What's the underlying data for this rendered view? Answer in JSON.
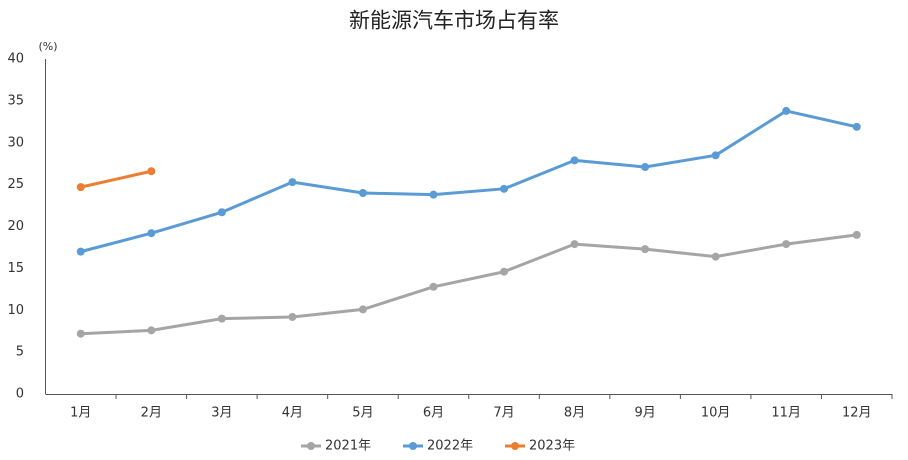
{
  "chart_data": {
    "type": "line",
    "title": "新能源汽车市场占有率",
    "y_label": "(%)",
    "categories": [
      "1月",
      "2月",
      "3月",
      "4月",
      "5月",
      "6月",
      "7月",
      "8月",
      "9月",
      "10月",
      "11月",
      "12月"
    ],
    "series": [
      {
        "name": "2021年",
        "color": "#a5a5a5",
        "values": [
          7.2,
          7.6,
          9.0,
          9.2,
          10.1,
          12.8,
          14.6,
          17.9,
          17.3,
          16.4,
          17.9,
          19.0
        ]
      },
      {
        "name": "2022年",
        "color": "#5b9bd5",
        "values": [
          17.0,
          19.2,
          21.7,
          25.3,
          24.0,
          23.8,
          24.5,
          27.9,
          27.1,
          28.5,
          33.8,
          31.9
        ]
      },
      {
        "name": "2023年",
        "color": "#ed7d31",
        "values": [
          24.7,
          26.6,
          null,
          null,
          null,
          null,
          null,
          null,
          null,
          null,
          null,
          null
        ]
      }
    ],
    "ylim": [
      0,
      40
    ],
    "yticks": [
      0,
      5,
      10,
      15,
      20,
      25,
      30,
      35,
      40
    ],
    "legend": "bottom",
    "grid": false
  }
}
